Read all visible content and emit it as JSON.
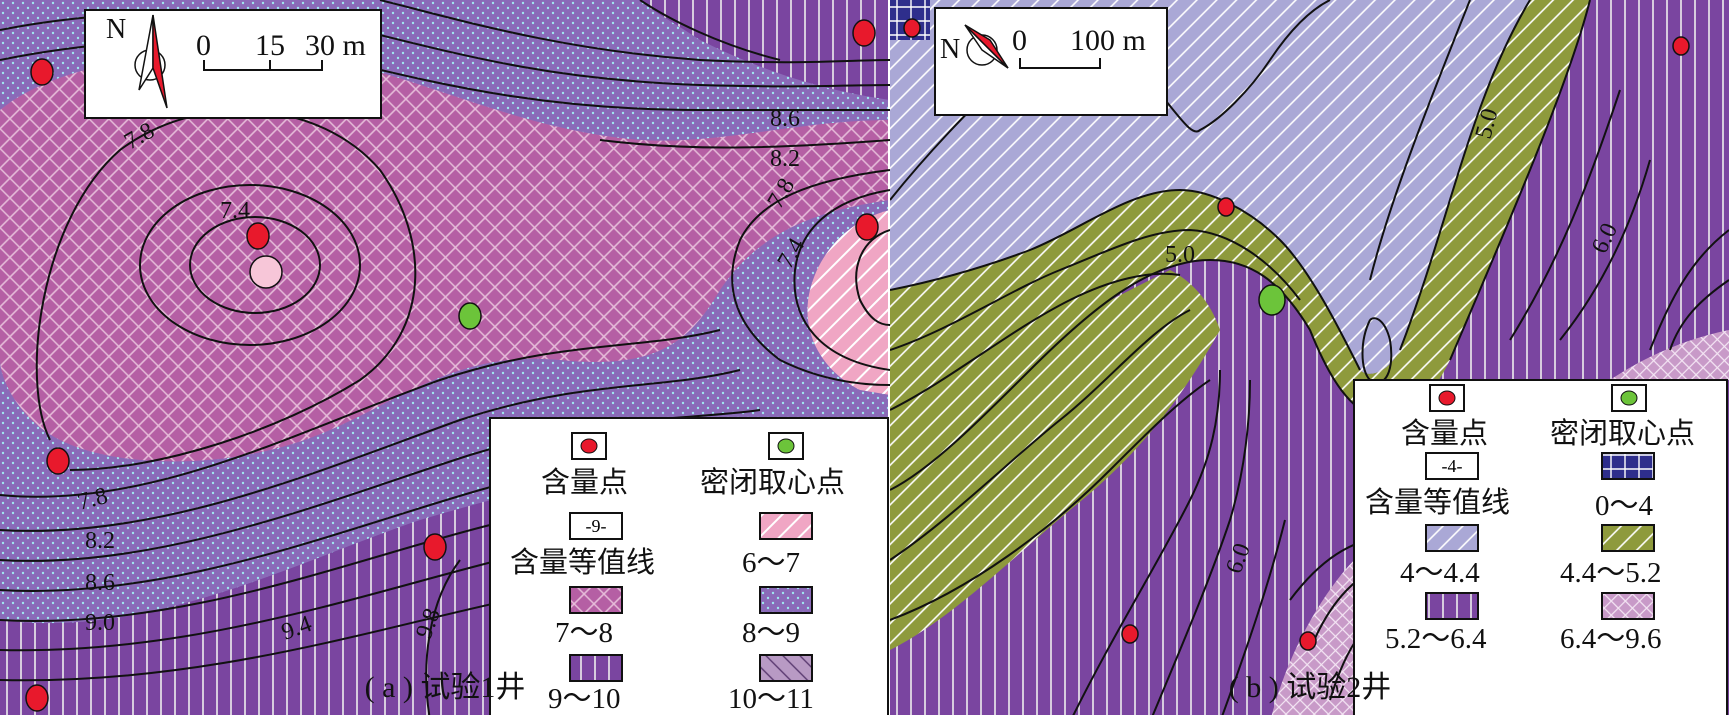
{
  "panels": [
    {
      "caption": "( a ) 试验1井",
      "scale": {
        "zero": "0",
        "mid": "15",
        "end": "30 m"
      },
      "north": "N",
      "contour_labels": [
        "7.8",
        "7.4",
        "8.6",
        "8.2",
        "7.8",
        "7.4",
        "7.8",
        "8.2",
        "8.6",
        "9.0",
        "9.4",
        "9.8"
      ],
      "legend": {
        "sample_point": "含量点",
        "core_point": "密闭取心点",
        "isoline": "含量等值线",
        "isoline_symbol": "-9-",
        "classes": [
          "6～7",
          "7～8",
          "8～9",
          "9～10",
          "10～11"
        ]
      }
    },
    {
      "caption": "( b ) 试验2井",
      "scale": {
        "zero": "0",
        "end": "100 m"
      },
      "north": "N",
      "contour_labels": [
        "5.0",
        "5.0",
        "6.0",
        "6.0"
      ],
      "legend": {
        "sample_point": "含量点",
        "core_point": "密闭取心点",
        "isoline": "含量等值线",
        "isoline_symbol": "-4-",
        "classes": [
          "0～4",
          "4～4.4",
          "4.4～5.2",
          "5.2～6.4",
          "6.4～9.6"
        ]
      }
    }
  ],
  "colors": {
    "class_6_7": "#f0a6c4",
    "class_7_8": "#b55fa4",
    "class_8_9": "#8a6ab8",
    "class_9_10": "#7a45a0",
    "class_10_11": "#b89ac4",
    "class_0_4": "#2e2e8c",
    "class_4_44": "#aaa8d6",
    "class_44_52": "#8e9a3c",
    "class_52_64": "#7a45a0",
    "class_64_96": "#c89ac8",
    "sample_point": "#e8192c",
    "core_point": "#6cc43a"
  }
}
